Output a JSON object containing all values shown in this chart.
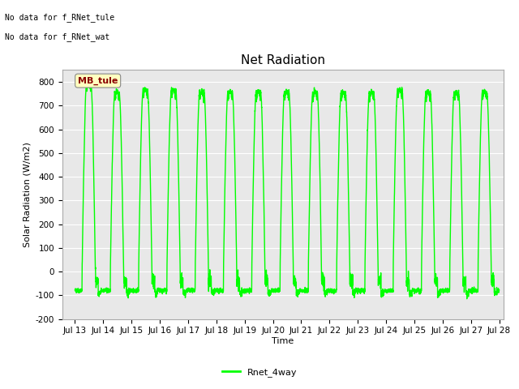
{
  "title": "Net Radiation",
  "xlabel": "Time",
  "ylabel": "Solar Radiation (W/m2)",
  "ylim": [
    -200,
    850
  ],
  "yticks": [
    -200,
    -100,
    0,
    100,
    200,
    300,
    400,
    500,
    600,
    700,
    800
  ],
  "line_color": "#00FF00",
  "line_width": 1.0,
  "bg_color": "#E8E8E8",
  "legend_label": "Rnet_4way",
  "annotation_line1": "No data for f_RNet_tule",
  "annotation_line2": "No data for f_RNet_wat",
  "box_label": "MB_tule",
  "box_text_color": "#8B0000",
  "box_bg_color": "#FFFFC0",
  "start_day": 13,
  "end_day": 28,
  "n_days": 15,
  "samples_per_day": 288,
  "peaks": [
    800,
    760,
    770,
    770,
    762,
    762,
    762,
    762,
    762,
    758,
    758,
    770,
    760,
    760,
    762
  ],
  "night_base": -80,
  "title_fontsize": 11,
  "axis_fontsize": 8,
  "tick_fontsize": 7.5,
  "annot_fontsize": 7,
  "legend_fontsize": 8
}
